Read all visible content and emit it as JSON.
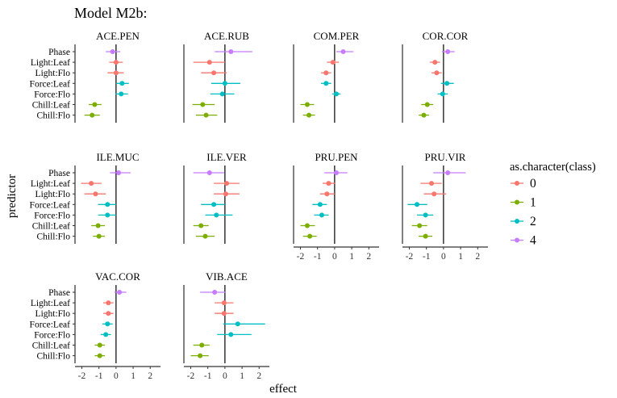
{
  "chart_data": {
    "type": "scatter",
    "title": "Model M2b:",
    "xlabel": "effect",
    "ylabel": "predictor",
    "xlim": [
      -2.4,
      2.6
    ],
    "x_ticks": [
      "-2",
      "-1",
      "0",
      "1",
      "2"
    ],
    "reference_line_x": 0,
    "predictors": [
      "Phase",
      "Light:Leaf",
      "Light:Flo",
      "Force:Leaf",
      "Force:Flo",
      "Chill:Leaf",
      "Chill:Flo"
    ],
    "predictor_class": [
      "4",
      "0",
      "0",
      "2",
      "2",
      "1",
      "1"
    ],
    "legend": {
      "title": "as.character(class)",
      "placement": "right",
      "entries": [
        {
          "label": "0",
          "color": "#F8766D"
        },
        {
          "label": "1",
          "color": "#7CAE00"
        },
        {
          "label": "2",
          "color": "#00BFC4"
        },
        {
          "label": "4",
          "color": "#C77CFF"
        }
      ]
    },
    "facets": [
      {
        "name": "ACE.PEN",
        "est": [
          -0.2,
          0.0,
          0.0,
          0.35,
          0.3,
          -1.25,
          -1.4
        ],
        "lo": [
          -0.6,
          -0.4,
          -0.5,
          0.0,
          -0.05,
          -1.6,
          -1.85
        ],
        "hi": [
          0.25,
          0.4,
          0.45,
          0.75,
          0.7,
          -0.85,
          -0.95
        ]
      },
      {
        "name": "ACE.RUB",
        "est": [
          0.35,
          -0.9,
          -0.65,
          0.0,
          -0.15,
          -1.3,
          -1.1
        ],
        "lo": [
          -0.6,
          -1.85,
          -1.4,
          -0.8,
          -0.85,
          -1.9,
          -1.7
        ],
        "hi": [
          1.6,
          0.0,
          0.1,
          0.9,
          0.55,
          -0.6,
          -0.45
        ]
      },
      {
        "name": "COM.PER",
        "est": [
          0.5,
          -0.1,
          -0.5,
          -0.5,
          0.1,
          -1.6,
          -1.5
        ],
        "lo": [
          0.1,
          -0.45,
          -0.8,
          -0.8,
          -0.15,
          -2.0,
          -1.85
        ],
        "hi": [
          1.1,
          0.25,
          -0.2,
          -0.2,
          0.35,
          -1.2,
          -1.15
        ]
      },
      {
        "name": "COR.COR",
        "est": [
          0.25,
          -0.5,
          -0.4,
          0.2,
          -0.05,
          -0.95,
          -1.15
        ],
        "lo": [
          -0.1,
          -0.8,
          -0.7,
          -0.15,
          -0.35,
          -1.3,
          -1.45
        ],
        "hi": [
          0.65,
          -0.2,
          -0.1,
          0.6,
          0.25,
          -0.6,
          -0.85
        ]
      },
      {
        "name": "ILE.MUC",
        "est": [
          0.15,
          -1.45,
          -1.2,
          -0.5,
          -0.5,
          -1.05,
          -1.0
        ],
        "lo": [
          -0.35,
          -2.05,
          -1.85,
          -1.05,
          -1.05,
          -1.45,
          -1.35
        ],
        "hi": [
          0.85,
          -0.85,
          -0.6,
          0.0,
          0.0,
          -0.65,
          -0.65
        ]
      },
      {
        "name": "ILE.VER",
        "est": [
          -0.9,
          0.1,
          0.05,
          -0.65,
          -0.5,
          -1.4,
          -1.15
        ],
        "lo": [
          -1.85,
          -0.65,
          -0.65,
          -1.4,
          -1.15,
          -1.85,
          -1.7
        ],
        "hi": [
          -0.05,
          0.85,
          0.85,
          0.0,
          0.45,
          -0.95,
          -0.6
        ]
      },
      {
        "name": "PRU.PEN",
        "est": [
          0.1,
          -0.35,
          -0.45,
          -0.85,
          -0.75,
          -1.6,
          -1.45
        ],
        "lo": [
          -0.6,
          -0.7,
          -0.85,
          -1.3,
          -1.2,
          -2.0,
          -1.85
        ],
        "hi": [
          0.75,
          0.05,
          0.0,
          -0.45,
          -0.35,
          -1.15,
          -1.05
        ]
      },
      {
        "name": "PRU.VIR",
        "est": [
          0.25,
          -0.7,
          -0.55,
          -1.55,
          -1.05,
          -1.4,
          -1.05
        ],
        "lo": [
          -0.6,
          -1.35,
          -1.15,
          -2.1,
          -1.55,
          -1.85,
          -1.45
        ],
        "hi": [
          1.3,
          -0.1,
          0.15,
          -0.95,
          -0.6,
          -0.95,
          -0.65
        ]
      },
      {
        "name": "VAC.COR",
        "est": [
          0.2,
          -0.45,
          -0.45,
          -0.5,
          -0.6,
          -0.95,
          -0.95
        ],
        "lo": [
          -0.1,
          -0.75,
          -0.75,
          -0.8,
          -0.9,
          -1.25,
          -1.25
        ],
        "hi": [
          0.6,
          -0.15,
          -0.15,
          -0.2,
          -0.3,
          -0.65,
          -0.65
        ]
      },
      {
        "name": "VIB.ACE",
        "est": [
          -0.6,
          -0.05,
          -0.05,
          0.75,
          0.35,
          -1.35,
          -1.45
        ],
        "lo": [
          -1.45,
          -0.6,
          -0.6,
          -0.1,
          -0.45,
          -1.85,
          -2.0
        ],
        "hi": [
          0.05,
          0.5,
          0.5,
          2.35,
          1.55,
          -0.9,
          -0.95
        ]
      }
    ]
  }
}
